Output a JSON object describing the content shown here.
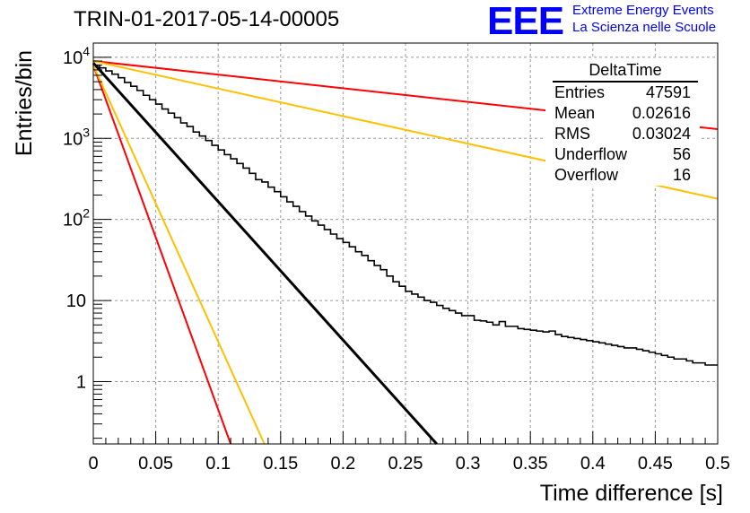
{
  "title": "TRIN-01-2017-05-14-00005",
  "logo": {
    "mark": "EEE",
    "line1": "Extreme Energy Events",
    "line2": "La Scienza nelle Scuole",
    "color": "#0000ff"
  },
  "stats_box": {
    "name": "DeltaTime",
    "rows": [
      {
        "label": "Entries",
        "value": "47591"
      },
      {
        "label": "Mean",
        "value": "0.02616"
      },
      {
        "label": "RMS",
        "value": "0.03024"
      },
      {
        "label": "Underflow",
        "value": "56"
      },
      {
        "label": "Overflow",
        "value": "16"
      }
    ]
  },
  "chart_data": {
    "type": "line",
    "title": "TRIN-01-2017-05-14-00005",
    "xlabel": "Time difference [s]",
    "ylabel": "Entries/bin",
    "xlim": [
      0,
      0.5
    ],
    "ylim": [
      0.17,
      15000
    ],
    "yscale": "log",
    "grid": true,
    "x_ticks": [
      "0",
      "0.05",
      "0.1",
      "0.15",
      "0.2",
      "0.25",
      "0.3",
      "0.35",
      "0.4",
      "0.45",
      "0.5"
    ],
    "y_ticks": [
      {
        "value": 1,
        "label": "1"
      },
      {
        "value": 10,
        "label": "10"
      },
      {
        "value": 100,
        "label": "10",
        "exp": "2"
      },
      {
        "value": 1000,
        "label": "10",
        "exp": "3"
      },
      {
        "value": 10000,
        "label": "10",
        "exp": "4"
      }
    ],
    "histogram": {
      "bin_width": 0.005,
      "color": "#000000",
      "values": [
        8000,
        7400,
        6800,
        6200,
        5600,
        4900,
        4400,
        3900,
        3400,
        3000,
        2650,
        2300,
        2050,
        1800,
        1550,
        1400,
        1200,
        1070,
        940,
        820,
        720,
        630,
        560,
        490,
        430,
        370,
        310,
        290,
        250,
        220,
        190,
        165,
        145,
        125,
        110,
        96,
        85,
        75,
        66,
        58,
        52,
        46,
        40,
        36,
        31,
        27,
        24,
        20,
        17,
        15,
        13,
        12,
        11,
        10,
        9.5,
        8.7,
        8,
        7.5,
        7,
        6.5,
        6.5,
        5.7,
        5.6,
        5.4,
        5,
        5.5,
        4.8,
        4.8,
        4.5,
        4.4,
        4.3,
        4.2,
        4.1,
        4.2,
        3.8,
        3.6,
        3.5,
        3.4,
        3.3,
        3.2,
        3.1,
        3,
        2.9,
        2.8,
        2.7,
        2.6,
        2.6,
        2.5,
        2.4,
        2.3,
        2.2,
        2.1,
        2,
        1.9,
        1.9,
        1.8,
        1.7,
        1.7,
        1.6,
        1.6
      ]
    },
    "series": [
      {
        "color": "#000000",
        "x": [
          0,
          0.275
        ],
        "y": [
          8500,
          0.17
        ]
      },
      {
        "color": "#ff0000",
        "x": [
          0,
          0.5
        ],
        "y": [
          9000,
          1300
        ]
      },
      {
        "color": "#ffc000",
        "x": [
          0,
          0.5
        ],
        "y": [
          9000,
          180
        ]
      },
      {
        "color": "#ff0000",
        "x": [
          0,
          0.11
        ],
        "y": [
          8000,
          0.17
        ]
      },
      {
        "color": "#ffc000",
        "x": [
          0,
          0.137
        ],
        "y": [
          8000,
          0.17
        ]
      }
    ]
  }
}
